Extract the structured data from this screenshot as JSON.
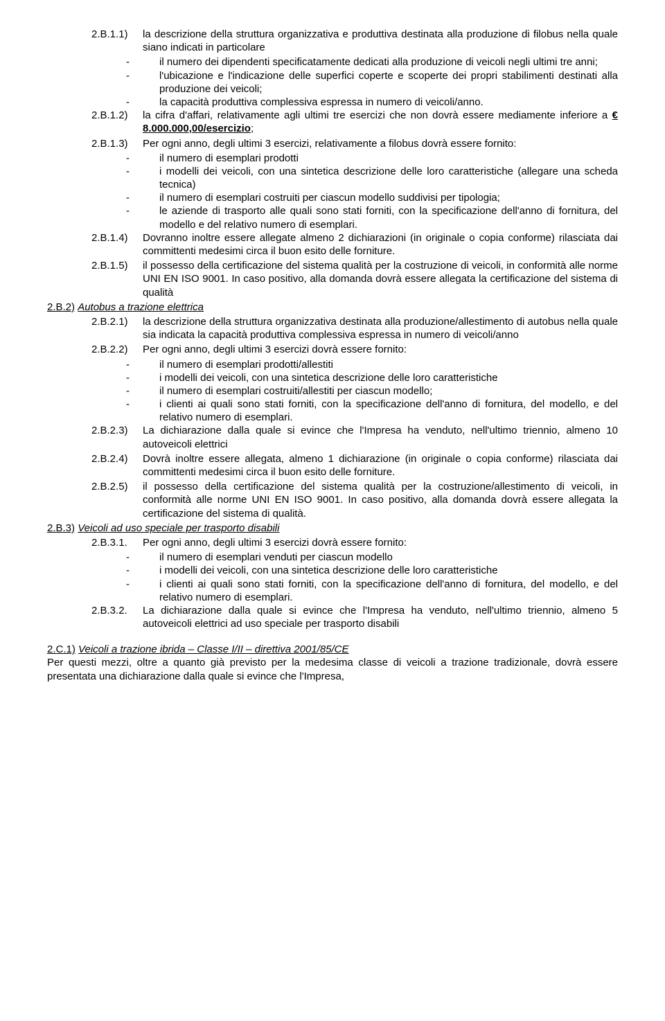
{
  "colors": {
    "text": "#000000",
    "bg": "#ffffff"
  },
  "typography": {
    "font_family": "Verdana",
    "font_size_pt": 11,
    "line_height": 1.28
  },
  "sections": {
    "b11": {
      "num": "2.B.1.1)",
      "text": "la descrizione della struttura organizzativa e produttiva destinata alla produzione di filobus nella quale siano indicati in particolare",
      "bullets": [
        "il numero dei dipendenti specificatamente dedicati alla produzione di veicoli negli ultimi tre anni;",
        "l'ubicazione e l'indicazione delle superfici coperte e scoperte dei propri stabilimenti destinati alla produzione dei veicoli;",
        "la capacità produttiva complessiva espressa in numero di veicoli/anno."
      ]
    },
    "b12": {
      "num": "2.B.1.2)",
      "text_a": "la cifra d'affari, relativamente agli ultimi tre esercizi che non dovrà essere mediamente inferiore a ",
      "amount": "€ 8.000.000,00/esercizio",
      "text_b": ";"
    },
    "b13": {
      "num": "2.B.1.3)",
      "text": "Per ogni anno, degli ultimi 3 esercizi, relativamente a filobus dovrà essere fornito:",
      "bullets": [
        "il numero di esemplari prodotti",
        "i modelli dei veicoli, con una sintetica descrizione delle loro caratteristiche (allegare una scheda tecnica)",
        "il numero di esemplari costruiti per ciascun modello suddivisi per tipologia;",
        "le aziende di trasporto alle quali sono stati forniti, con la specificazione dell'anno di fornitura, del modello e del relativo numero di esemplari."
      ]
    },
    "b14": {
      "num": "2.B.1.4)",
      "text": "Dovranno inoltre essere allegate almeno 2 dichiarazioni (in originale o copia conforme) rilasciata dai committenti medesimi circa il buon esito delle forniture."
    },
    "b15": {
      "num": "2.B.1.5)",
      "text": "il possesso della certificazione del sistema qualità per la costruzione di veicoli, in conformità alle norme UNI EN ISO 9001. In caso positivo, alla domanda dovrà essere allegata la certificazione del sistema di qualità"
    },
    "b2_heading": {
      "num": "2.B.2)",
      "title": "Autobus a trazione elettrica"
    },
    "b21": {
      "num": "2.B.2.1)",
      "text": "la descrizione della struttura organizzativa destinata alla produzione/allestimento di autobus nella quale sia indicata la capacità produttiva complessiva espressa in numero di veicoli/anno"
    },
    "b22": {
      "num": "2.B.2.2)",
      "text": "Per ogni anno, degli ultimi 3 esercizi dovrà essere fornito:",
      "bullets": [
        "il numero di esemplari prodotti/allestiti",
        "i modelli dei veicoli, con una sintetica descrizione delle loro caratteristiche",
        "il numero di esemplari costruiti/allestiti per ciascun modello;",
        "i clienti ai quali sono stati forniti, con la specificazione dell'anno di fornitura, del modello, e del relativo numero di esemplari."
      ]
    },
    "b23": {
      "num": "2.B.2.3)",
      "text": "La dichiarazione dalla quale si evince che l'Impresa ha venduto, nell'ultimo triennio, almeno 10 autoveicoli elettrici"
    },
    "b24": {
      "num": "2.B.2.4)",
      "text": "Dovrà inoltre essere allegata, almeno 1 dichiarazione (in originale o copia conforme) rilasciata dai committenti medesimi circa il buon esito delle forniture."
    },
    "b25": {
      "num": "2.B.2.5)",
      "text": "il possesso della certificazione del sistema qualità per la costruzione/allestimento di veicoli, in conformità alle norme UNI EN ISO 9001. In caso positivo, alla domanda dovrà essere allegata la certificazione del sistema di qualità."
    },
    "b3_heading": {
      "num": "2.B.3)",
      "title": "Veicoli ad uso speciale per trasporto disabili"
    },
    "b31": {
      "num": "2.B.3.1.",
      "text": "Per ogni anno, degli ultimi 3 esercizi dovrà essere fornito:",
      "bullets": [
        "il numero di esemplari venduti per ciascun modello",
        "i modelli dei veicoli, con una sintetica descrizione delle loro caratteristiche",
        "i clienti ai quali sono stati forniti, con la specificazione dell'anno di fornitura, del modello, e del relativo numero di esemplari."
      ]
    },
    "b32": {
      "num": "2.B.3.2.",
      "text": "La dichiarazione dalla quale si evince che l'Impresa ha venduto, nell'ultimo triennio, almeno 5 autoveicoli elettrici ad uso speciale per trasporto disabili"
    },
    "c1_heading": {
      "num": "2.C.1)",
      "title": "Veicoli a trazione ibrida – Classe I/II – direttiva 2001/85/CE"
    },
    "c1_body": "Per questi mezzi, oltre a quanto già previsto per la medesima classe di veicoli a trazione tradizionale, dovrà essere presentata una dichiarazione dalla quale si evince che l'Impresa,"
  },
  "dash": "-   "
}
